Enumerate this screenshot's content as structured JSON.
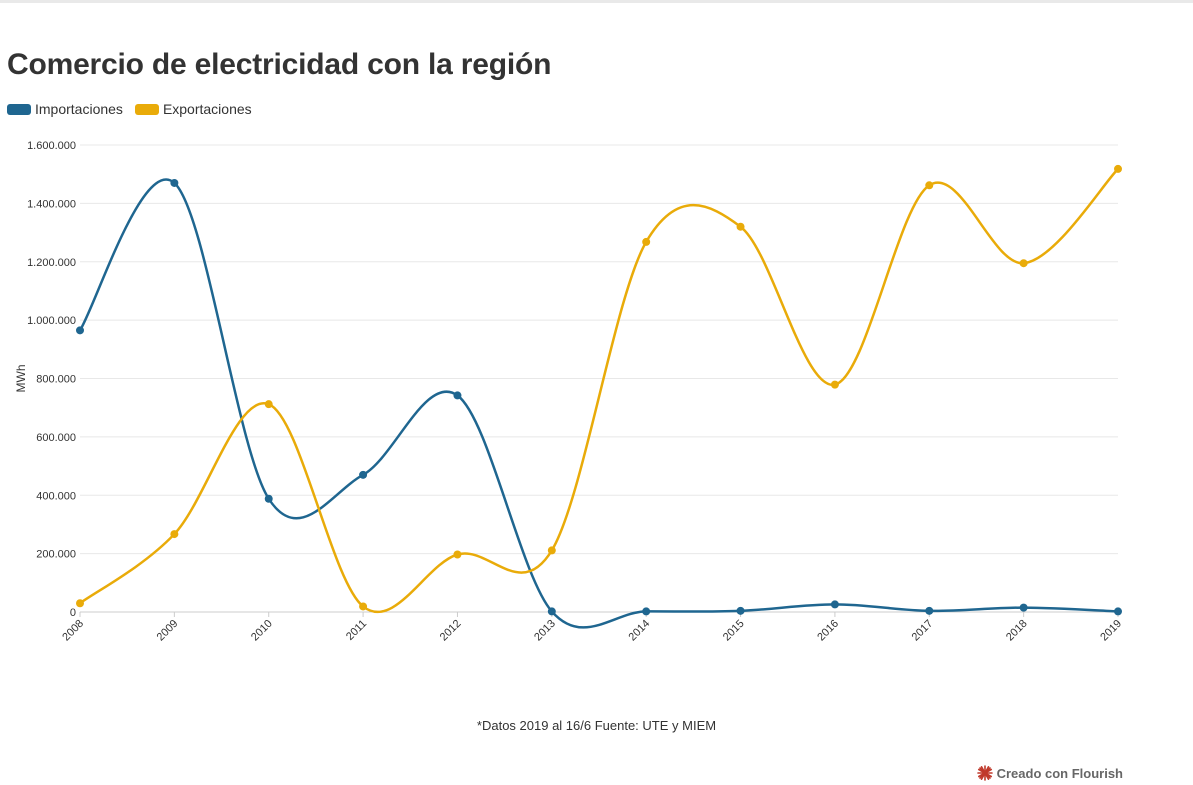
{
  "title": "Comercio de electricidad con la región",
  "note": "*Datos 2019 al 16/6 Fuente: UTE y MIEM",
  "credit": {
    "label": "Creado con Flourish",
    "icon": "flourish-logo-icon"
  },
  "colors": {
    "importaciones": "#1f6690",
    "exportaciones": "#e9ab09",
    "grid": "#e8e8e8"
  },
  "chart_data": {
    "type": "line",
    "ylabel": "MWh",
    "xlabel": "",
    "ylim": [
      0,
      1600000
    ],
    "y_ticks": [
      0,
      200000,
      400000,
      600000,
      800000,
      1000000,
      1200000,
      1400000,
      1600000
    ],
    "y_tick_labels": [
      "0",
      "200.000",
      "400.000",
      "600.000",
      "800.000",
      "1.000.000",
      "1.200.000",
      "1.400.000",
      "1.600.000"
    ],
    "x": [
      "2008",
      "2009",
      "2010",
      "2011",
      "2012",
      "2013",
      "2014",
      "2015",
      "2016",
      "2017",
      "2018",
      "2019"
    ],
    "grid": true,
    "legend_position": "top-left",
    "series": [
      {
        "name": "Importaciones",
        "color": "#1f6690",
        "values": [
          965000,
          1470000,
          388000,
          470000,
          742000,
          2000,
          2000,
          4000,
          26000,
          4000,
          15000,
          2000
        ]
      },
      {
        "name": "Exportaciones",
        "color": "#e9ab09",
        "values": [
          30000,
          267000,
          712000,
          19000,
          197000,
          211000,
          1268000,
          1320000,
          779000,
          1462000,
          1195000,
          1518000
        ]
      }
    ]
  }
}
